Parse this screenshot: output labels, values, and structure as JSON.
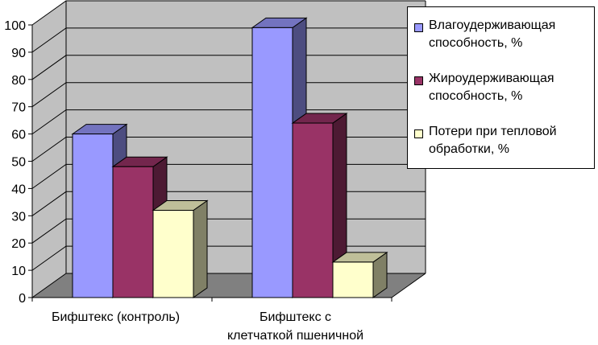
{
  "chart_data": {
    "type": "bar",
    "categories": [
      "Бифштекс (контроль)",
      "Бифштекс с клетчаткой пшеничной"
    ],
    "category_lines": [
      [
        "Бифштекс (контроль)"
      ],
      [
        "Бифштекс с",
        "клетчаткой пшеничной"
      ]
    ],
    "series": [
      {
        "name": "Влагоудерживающая способность, %",
        "name_lines": [
          "Влагоудерживающая",
          "способность, %"
        ],
        "values": [
          60,
          99
        ],
        "color": "#9999ff"
      },
      {
        "name": "Жироудерживающая способность, %",
        "name_lines": [
          "Жироудерживающая",
          "способность, %"
        ],
        "values": [
          48,
          64
        ],
        "color": "#993366"
      },
      {
        "name": "Потери при тепловой обработки, %",
        "name_lines": [
          "Потери при тепловой",
          "обработки, %"
        ],
        "values": [
          32,
          13
        ],
        "color": "#ffffcc"
      }
    ],
    "ylim": [
      0,
      100
    ],
    "yticks": [
      "0",
      "10",
      "20",
      "30",
      "40",
      "50",
      "60",
      "70",
      "80",
      "90",
      "100"
    ],
    "grid": true,
    "three_d": true,
    "legend_position": "right"
  }
}
